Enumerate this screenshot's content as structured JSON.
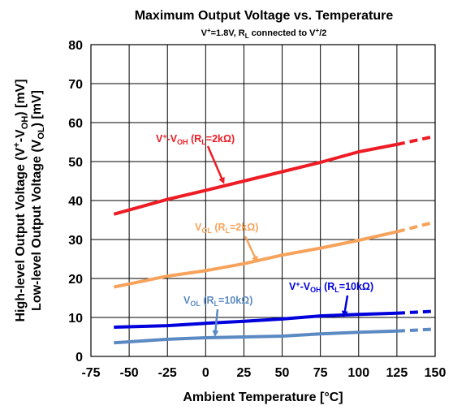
{
  "chart_data": {
    "type": "line",
    "title": "Maximum Output Voltage vs. Temperature",
    "subtitle": {
      "v_label": "V",
      "v_sup": "+",
      "v_value": "=1.8V, R",
      "r_sub": "L",
      "tail": " connected to V",
      "tail_sup": "+",
      "tail_end": "/2"
    },
    "xlabel": "Ambient Temperature [°C]",
    "ylabel": {
      "line1": {
        "a": "High-level Output Voltage (V",
        "a_sup": "+",
        "b": "-V",
        "b_sub": "OH",
        "c": ") [mV]"
      },
      "line2": {
        "a": "Low-level Output Voltage (V",
        "a_sub": "OL",
        "b": ") [mV]"
      }
    },
    "xlim": [
      -75,
      150
    ],
    "ylim": [
      0,
      80
    ],
    "xticks": [
      "-75",
      "-50",
      "-25",
      "0",
      "25",
      "50",
      "75",
      "100",
      "125",
      "150"
    ],
    "yticks": [
      "0",
      "10",
      "20",
      "30",
      "40",
      "50",
      "60",
      "70",
      "80"
    ],
    "grid": true,
    "series": [
      {
        "color": "#ee1c25",
        "x": [
          -60,
          -25,
          0,
          25,
          50,
          75,
          100,
          125,
          150
        ],
        "y": [
          36.5,
          40.3,
          42.6,
          45.0,
          47.4,
          49.8,
          52.5,
          54.4,
          56.5
        ],
        "dashed_from": 125,
        "label": {
          "a": "V",
          "a_sup": "+",
          "b": "-V",
          "b_sub": "OH",
          "c": " (R",
          "c_sub": "L",
          "d": "=2kΩ)"
        }
      },
      {
        "color": "#f7a35c",
        "x": [
          -60,
          -25,
          0,
          25,
          50,
          75,
          100,
          125,
          150
        ],
        "y": [
          17.8,
          20.6,
          22.0,
          23.8,
          26.0,
          27.8,
          29.8,
          32.0,
          34.5
        ],
        "dashed_from": 125,
        "label": {
          "a": "V",
          "a_sub": "OL",
          "b": " (R",
          "b_sub": "L",
          "c": "=2kΩ)"
        }
      },
      {
        "color": "#0000dd",
        "x": [
          -60,
          -25,
          0,
          25,
          50,
          75,
          100,
          125,
          150
        ],
        "y": [
          7.5,
          7.9,
          8.5,
          9.0,
          9.6,
          10.4,
          10.8,
          11.1,
          11.6
        ],
        "dashed_from": 125,
        "label": {
          "a": "V",
          "a_sup": "+",
          "b": "-V",
          "b_sub": "OH",
          "c": " (R",
          "c_sub": "L",
          "d": "=10kΩ)"
        }
      },
      {
        "color": "#5b8ac3",
        "x": [
          -60,
          -25,
          0,
          25,
          50,
          75,
          100,
          125,
          150
        ],
        "y": [
          3.5,
          4.4,
          4.8,
          5.0,
          5.2,
          5.8,
          6.2,
          6.5,
          7.0
        ],
        "dashed_from": 125,
        "label": {
          "a": "V",
          "a_sub": "OL",
          "b": " (R",
          "b_sub": "L",
          "c": "=10kΩ)"
        }
      }
    ]
  }
}
